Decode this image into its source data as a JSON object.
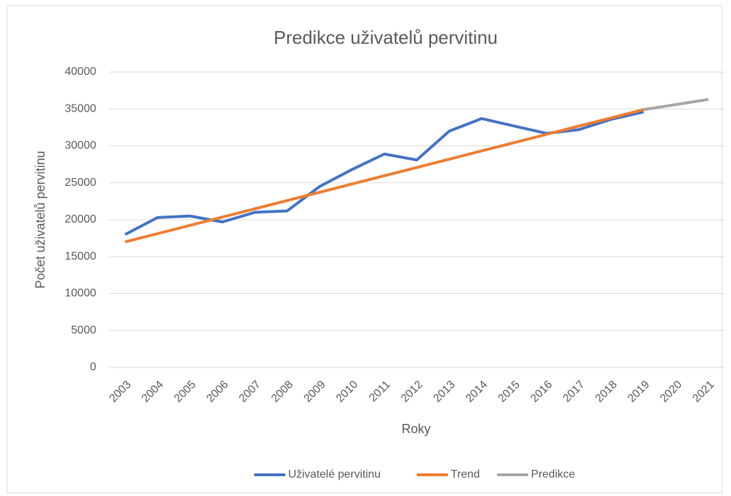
{
  "chart_data": {
    "type": "line",
    "title": "Predikce uživatelů pervitinu",
    "x_label": "Roky",
    "y_label": "Počet uživatelů pervitinu",
    "categories": [
      "2003",
      "2004",
      "2005",
      "2006",
      "2007",
      "2008",
      "2009",
      "2010",
      "2011",
      "2012",
      "2013",
      "2014",
      "2015",
      "2016",
      "2017",
      "2018",
      "2019",
      "2020",
      "2021"
    ],
    "series": [
      {
        "name": "Uživatelé pervitinu",
        "color": "#4472c4",
        "values": [
          18000,
          20300,
          20500,
          19700,
          21000,
          21200,
          24500,
          26800,
          28900,
          28100,
          32000,
          33700,
          32700,
          31700,
          32200,
          33600,
          34600,
          null,
          null
        ]
      },
      {
        "name": "Trend",
        "color": "#ed7d31",
        "values": [
          17000,
          18120,
          19240,
          20360,
          21480,
          22600,
          23720,
          24840,
          25960,
          27080,
          28200,
          29320,
          30440,
          31560,
          32680,
          33800,
          34920,
          null,
          null
        ]
      },
      {
        "name": "Predikce",
        "color": "#a5a5a5",
        "values": [
          null,
          null,
          null,
          null,
          null,
          null,
          null,
          null,
          null,
          null,
          null,
          null,
          null,
          null,
          null,
          null,
          34920,
          35600,
          36300
        ]
      }
    ],
    "ylim": [
      0,
      40000
    ],
    "yticks": [
      0,
      5000,
      10000,
      15000,
      20000,
      25000,
      30000,
      35000,
      40000
    ],
    "grid": true,
    "legend": "bottom"
  }
}
